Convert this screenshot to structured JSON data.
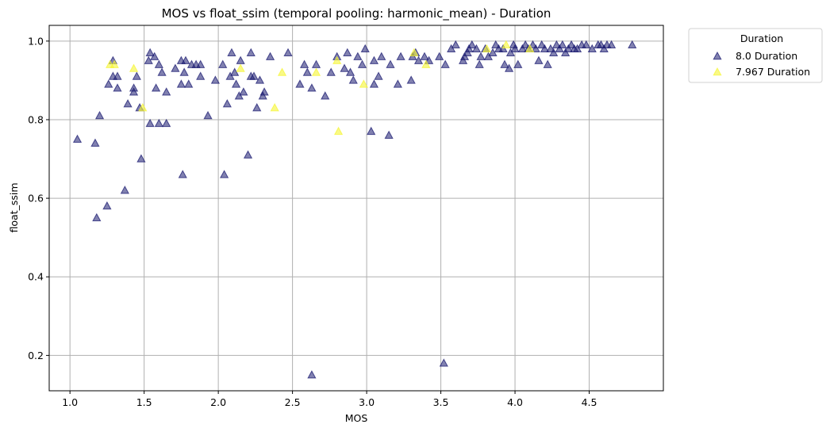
{
  "chart_data": {
    "type": "scatter",
    "title": "MOS vs float_ssim (temporal pooling: harmonic_mean) - Duration",
    "xlabel": "MOS",
    "ylabel": "float_ssim",
    "xlim": [
      0.86,
      5.0
    ],
    "ylim": [
      0.11,
      1.04
    ],
    "xticks": [
      "1.0",
      "1.5",
      "2.0",
      "2.5",
      "3.0",
      "3.5",
      "4.0",
      "4.5"
    ],
    "yticks": [
      "0.2",
      "0.4",
      "0.6",
      "0.8",
      "1.0"
    ],
    "grid": true,
    "legend": {
      "title": "Duration",
      "placement": "outside-top-right"
    },
    "marker": "triangle-up",
    "series": [
      {
        "name": "8.0 Duration",
        "color": "#191970",
        "points": [
          [
            1.05,
            0.75
          ],
          [
            1.17,
            0.74
          ],
          [
            1.18,
            0.55
          ],
          [
            1.2,
            0.81
          ],
          [
            1.25,
            0.58
          ],
          [
            1.26,
            0.89
          ],
          [
            1.29,
            0.95
          ],
          [
            1.29,
            0.91
          ],
          [
            1.32,
            0.91
          ],
          [
            1.32,
            0.88
          ],
          [
            1.37,
            0.62
          ],
          [
            1.39,
            0.84
          ],
          [
            1.43,
            0.87
          ],
          [
            1.43,
            0.88
          ],
          [
            1.45,
            0.91
          ],
          [
            1.47,
            0.83
          ],
          [
            1.48,
            0.7
          ],
          [
            1.53,
            0.95
          ],
          [
            1.54,
            0.97
          ],
          [
            1.54,
            0.79
          ],
          [
            1.57,
            0.96
          ],
          [
            1.58,
            0.88
          ],
          [
            1.6,
            0.94
          ],
          [
            1.6,
            0.79
          ],
          [
            1.62,
            0.92
          ],
          [
            1.65,
            0.79
          ],
          [
            1.65,
            0.87
          ],
          [
            1.71,
            0.93
          ],
          [
            1.75,
            0.89
          ],
          [
            1.75,
            0.95
          ],
          [
            1.76,
            0.66
          ],
          [
            1.77,
            0.92
          ],
          [
            1.78,
            0.95
          ],
          [
            1.8,
            0.89
          ],
          [
            1.82,
            0.94
          ],
          [
            1.85,
            0.94
          ],
          [
            1.88,
            0.94
          ],
          [
            1.88,
            0.91
          ],
          [
            1.93,
            0.81
          ],
          [
            1.98,
            0.9
          ],
          [
            2.03,
            0.94
          ],
          [
            2.04,
            0.66
          ],
          [
            2.06,
            0.84
          ],
          [
            2.08,
            0.91
          ],
          [
            2.09,
            0.97
          ],
          [
            2.11,
            0.92
          ],
          [
            2.12,
            0.89
          ],
          [
            2.14,
            0.86
          ],
          [
            2.15,
            0.95
          ],
          [
            2.17,
            0.87
          ],
          [
            2.2,
            0.71
          ],
          [
            2.22,
            0.97
          ],
          [
            2.22,
            0.91
          ],
          [
            2.24,
            0.91
          ],
          [
            2.26,
            0.83
          ],
          [
            2.28,
            0.9
          ],
          [
            2.3,
            0.86
          ],
          [
            2.31,
            0.87
          ],
          [
            2.35,
            0.96
          ],
          [
            2.47,
            0.97
          ],
          [
            2.55,
            0.89
          ],
          [
            2.58,
            0.94
          ],
          [
            2.6,
            0.92
          ],
          [
            2.63,
            0.15
          ],
          [
            2.63,
            0.88
          ],
          [
            2.66,
            0.94
          ],
          [
            2.72,
            0.86
          ],
          [
            2.76,
            0.92
          ],
          [
            2.8,
            0.96
          ],
          [
            2.85,
            0.93
          ],
          [
            2.87,
            0.97
          ],
          [
            2.89,
            0.92
          ],
          [
            2.91,
            0.9
          ],
          [
            2.94,
            0.96
          ],
          [
            2.97,
            0.94
          ],
          [
            2.99,
            0.98
          ],
          [
            3.03,
            0.77
          ],
          [
            3.05,
            0.89
          ],
          [
            3.05,
            0.95
          ],
          [
            3.08,
            0.91
          ],
          [
            3.1,
            0.96
          ],
          [
            3.15,
            0.76
          ],
          [
            3.16,
            0.94
          ],
          [
            3.21,
            0.89
          ],
          [
            3.23,
            0.96
          ],
          [
            3.3,
            0.9
          ],
          [
            3.31,
            0.96
          ],
          [
            3.33,
            0.97
          ],
          [
            3.35,
            0.95
          ],
          [
            3.39,
            0.96
          ],
          [
            3.42,
            0.95
          ],
          [
            3.49,
            0.96
          ],
          [
            3.52,
            0.18
          ],
          [
            3.53,
            0.94
          ],
          [
            3.57,
            0.98
          ],
          [
            3.6,
            0.99
          ],
          [
            3.65,
            0.95
          ],
          [
            3.66,
            0.96
          ],
          [
            3.68,
            0.97
          ],
          [
            3.69,
            0.98
          ],
          [
            3.71,
            0.99
          ],
          [
            3.74,
            0.98
          ],
          [
            3.76,
            0.94
          ],
          [
            3.77,
            0.96
          ],
          [
            3.8,
            0.98
          ],
          [
            3.82,
            0.96
          ],
          [
            3.85,
            0.97
          ],
          [
            3.87,
            0.99
          ],
          [
            3.89,
            0.98
          ],
          [
            3.92,
            0.98
          ],
          [
            3.93,
            0.94
          ],
          [
            3.96,
            0.93
          ],
          [
            3.97,
            0.97
          ],
          [
            3.99,
            0.99
          ],
          [
            4.0,
            0.98
          ],
          [
            4.02,
            0.94
          ],
          [
            4.05,
            0.98
          ],
          [
            4.07,
            0.99
          ],
          [
            4.09,
            0.98
          ],
          [
            4.12,
            0.99
          ],
          [
            4.14,
            0.98
          ],
          [
            4.16,
            0.95
          ],
          [
            4.18,
            0.99
          ],
          [
            4.2,
            0.98
          ],
          [
            4.22,
            0.94
          ],
          [
            4.24,
            0.98
          ],
          [
            4.26,
            0.97
          ],
          [
            4.28,
            0.99
          ],
          [
            4.3,
            0.98
          ],
          [
            4.32,
            0.99
          ],
          [
            4.34,
            0.97
          ],
          [
            4.36,
            0.98
          ],
          [
            4.38,
            0.99
          ],
          [
            4.4,
            0.98
          ],
          [
            4.42,
            0.98
          ],
          [
            4.45,
            0.99
          ],
          [
            4.48,
            0.99
          ],
          [
            4.52,
            0.98
          ],
          [
            4.56,
            0.99
          ],
          [
            4.58,
            0.99
          ],
          [
            4.6,
            0.98
          ],
          [
            4.62,
            0.99
          ],
          [
            4.65,
            0.99
          ],
          [
            4.79,
            0.99
          ]
        ]
      },
      {
        "name": "7.967 Duration",
        "color": "#f5f536",
        "points": [
          [
            1.27,
            0.94
          ],
          [
            1.3,
            0.94
          ],
          [
            1.43,
            0.93
          ],
          [
            1.49,
            0.83
          ],
          [
            2.15,
            0.93
          ],
          [
            2.38,
            0.83
          ],
          [
            2.43,
            0.92
          ],
          [
            2.66,
            0.92
          ],
          [
            2.8,
            0.95
          ],
          [
            2.81,
            0.77
          ],
          [
            2.98,
            0.89
          ],
          [
            3.32,
            0.97
          ],
          [
            3.4,
            0.94
          ],
          [
            3.81,
            0.98
          ],
          [
            3.94,
            0.99
          ],
          [
            4.1,
            0.98
          ]
        ]
      }
    ]
  }
}
